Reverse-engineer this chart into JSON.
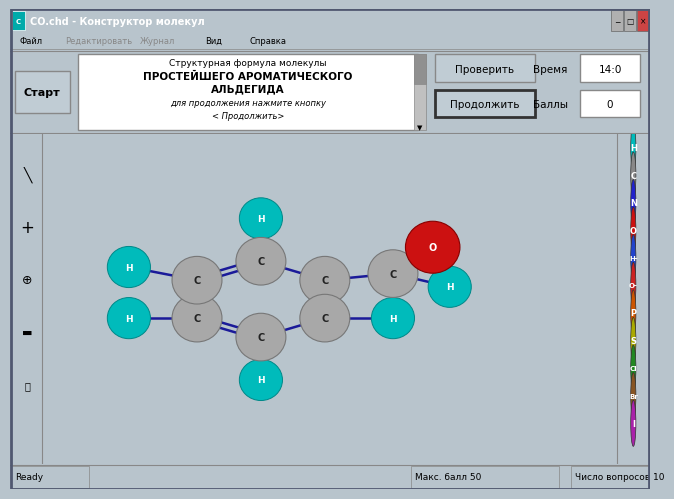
{
  "title_bar": "CO.chd - Конструктор молекул",
  "menu_items": [
    "Файл",
    "Редактировать",
    "Журнал",
    "Вид",
    "Справка"
  ],
  "start_btn": "Старт",
  "check_btn": "Проверить",
  "continue_btn": "Продолжить",
  "time_label": "Время",
  "time_value": "14:0",
  "score_label": "Баллы",
  "score_value": "0",
  "text_box_lines": [
    "Структурная формула молекулы",
    "ПРОСТЕЙШЕГО АРОМАТИЧЕСКОГО",
    "АЛЬДЕГИДА",
    "для продолжения нажмите кнопку",
    "< Продолжить>"
  ],
  "status_left": "Ready",
  "status_mid": "Макс. балл 50",
  "status_right": "Число вопросов 10",
  "bg_color": "#b8c4cc",
  "window_bg": "#b8c4cc",
  "canvas_bg": "#f0f4f8",
  "title_bg": "#6080a0",
  "btn_bg": "#c0ccd4",
  "atom_C_color": "#a8a8a8",
  "atom_H_color": "#00bbbb",
  "atom_O_color": "#cc1111",
  "bond_color": "#1a1a99",
  "right_panel_atoms": [
    "H",
    "C",
    "N",
    "O",
    "H-",
    "O-",
    "P",
    "S",
    "Cl",
    "Br",
    "I"
  ],
  "right_panel_colors": [
    "#00bbbb",
    "#888888",
    "#2222cc",
    "#cc1111",
    "#2244cc",
    "#cc2222",
    "#cc5500",
    "#aaaa00",
    "#228822",
    "#885522",
    "#aa22aa"
  ]
}
